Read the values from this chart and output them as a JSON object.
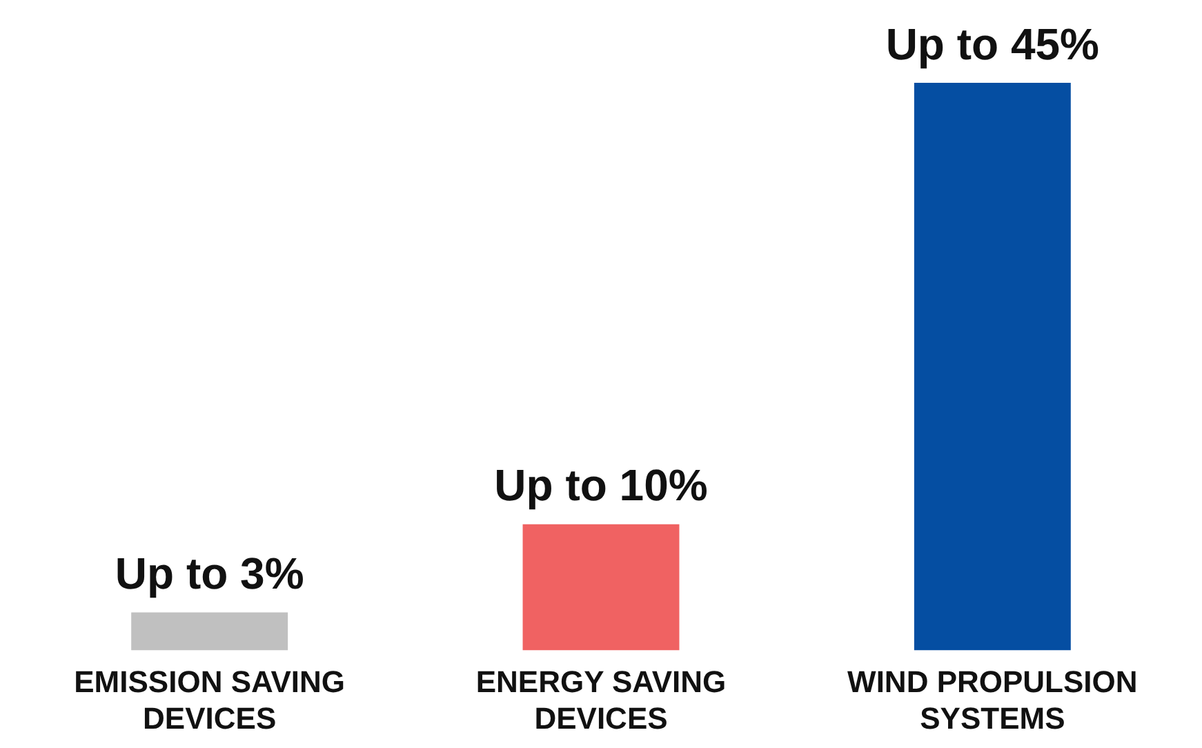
{
  "chart_data": {
    "type": "bar",
    "categories": [
      "EMISSION SAVING DEVICES",
      "ENERGY SAVING DEVICES",
      "WIND PROPULSION SYSTEMS"
    ],
    "values": [
      3,
      10,
      45
    ],
    "colors": [
      "#c0c0c0",
      "#f06262",
      "#054ea2"
    ],
    "value_labels": [
      "Up to 3%",
      "Up to 10%",
      "Up to 45%"
    ]
  }
}
